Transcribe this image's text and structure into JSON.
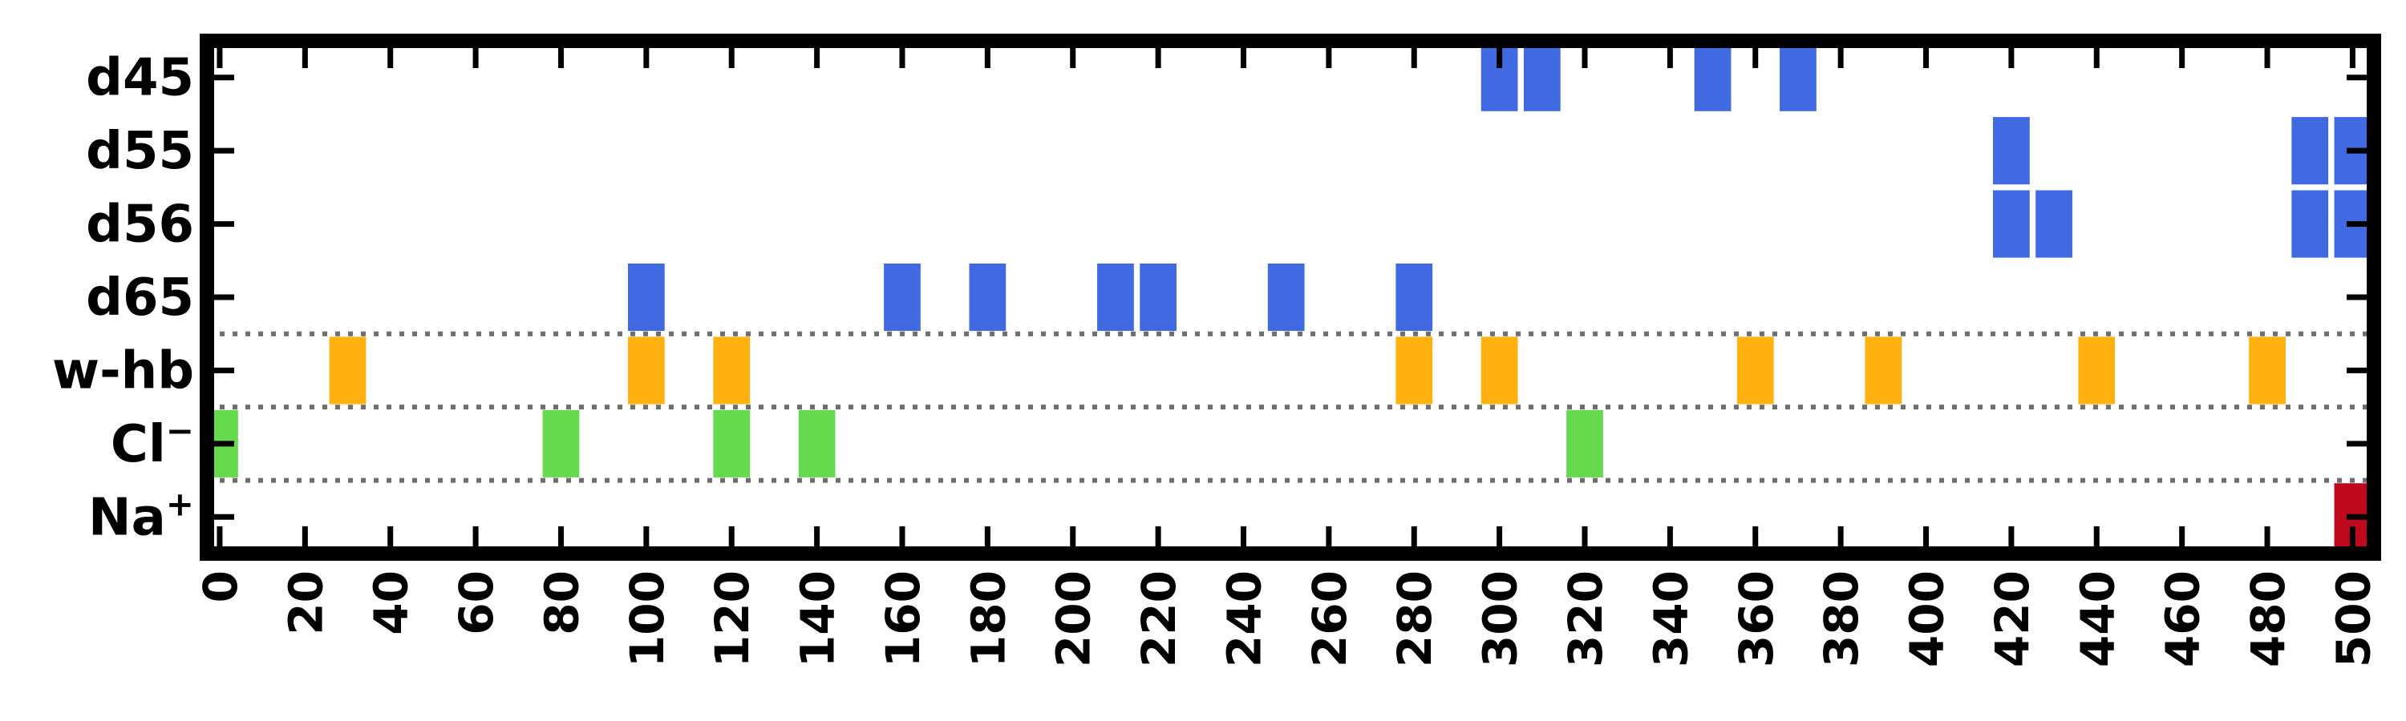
{
  "chart_data": {
    "type": "event-raster",
    "title": "",
    "xlabel": "",
    "ylabel": "",
    "xlim": [
      -3,
      505
    ],
    "grid": false,
    "x_ticks": [
      0,
      20,
      40,
      60,
      80,
      100,
      120,
      140,
      160,
      180,
      200,
      220,
      240,
      260,
      280,
      300,
      320,
      340,
      360,
      380,
      400,
      420,
      440,
      460,
      480,
      500
    ],
    "tick_labels": [
      "0",
      "20",
      "40",
      "60",
      "80",
      "100",
      "120",
      "140",
      "160",
      "180",
      "200",
      "220",
      "240",
      "260",
      "280",
      "300",
      "320",
      "340",
      "360",
      "380",
      "400",
      "420",
      "440",
      "460",
      "480",
      "500"
    ],
    "separators_after": [
      "d65",
      "w-hb",
      "Cl"
    ],
    "categories": [
      {
        "label": "d45",
        "sup": "",
        "color": "#4169E1",
        "x": [
          300,
          310,
          350,
          370
        ]
      },
      {
        "label": "d55",
        "sup": "",
        "color": "#4169E1",
        "x": [
          420,
          490,
          500
        ]
      },
      {
        "label": "d56",
        "sup": "",
        "color": "#4169E1",
        "x": [
          420,
          430,
          490,
          500
        ]
      },
      {
        "label": "d65",
        "sup": "",
        "color": "#4169E1",
        "x": [
          100,
          160,
          180,
          210,
          220,
          250,
          280
        ]
      },
      {
        "label": "w-hb",
        "sup": "",
        "color": "#FFB20F",
        "x": [
          30,
          100,
          120,
          280,
          300,
          360,
          390,
          440,
          480
        ]
      },
      {
        "label": "Cl",
        "sup": "−",
        "color": "#66D94F",
        "x": [
          0,
          80,
          120,
          140,
          320
        ]
      },
      {
        "label": "Na",
        "sup": "+",
        "color": "#C0081C",
        "x": [
          500
        ]
      }
    ]
  }
}
